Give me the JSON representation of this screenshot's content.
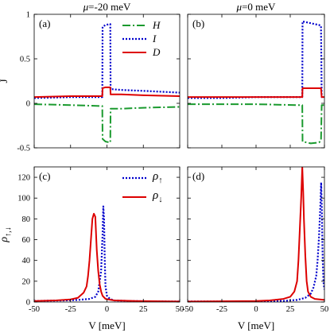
{
  "chart_data": [
    {
      "panel_label": "(a)",
      "type": "line",
      "title": "μ=-20 meV",
      "xlabel": "",
      "ylabel": "J",
      "xlim": [
        -50,
        50
      ],
      "ylim": [
        -0.5,
        1.0
      ],
      "xticks": [
        -50,
        -25,
        0,
        25,
        50
      ],
      "yticks": [
        -0.5,
        0,
        0.5,
        1
      ],
      "ytick_labels": [
        "-0.5",
        "0",
        "0.5",
        "1"
      ],
      "legend": {
        "placement": "top-right",
        "entries": [
          "H",
          "I",
          "D"
        ]
      },
      "series": [
        {
          "name": "H",
          "color": "#1a9a2e",
          "style": "dash-dot",
          "points": [
            [
              -50,
              -0.01
            ],
            [
              -25,
              -0.02
            ],
            [
              -5,
              -0.03
            ],
            [
              -3.2,
              -0.03
            ],
            [
              -3,
              -0.4
            ],
            [
              -1,
              -0.43
            ],
            [
              2,
              -0.44
            ],
            [
              2.3,
              -0.44
            ],
            [
              2.5,
              -0.06
            ],
            [
              10,
              -0.06
            ],
            [
              25,
              -0.05
            ],
            [
              50,
              -0.04
            ]
          ]
        },
        {
          "name": "I",
          "color": "#0000cc",
          "style": "dotted",
          "points": [
            [
              -50,
              0.06
            ],
            [
              -25,
              0.07
            ],
            [
              -5,
              0.07
            ],
            [
              -3.2,
              0.07
            ],
            [
              -3,
              0.86
            ],
            [
              -1,
              0.88
            ],
            [
              2,
              0.89
            ],
            [
              2.3,
              0.89
            ],
            [
              2.5,
              0.16
            ],
            [
              10,
              0.15
            ],
            [
              25,
              0.14
            ],
            [
              50,
              0.12
            ]
          ]
        },
        {
          "name": "D",
          "color": "#dd0000",
          "style": "solid",
          "points": [
            [
              -50,
              0.07
            ],
            [
              -25,
              0.08
            ],
            [
              -5,
              0.08
            ],
            [
              -3.2,
              0.08
            ],
            [
              -3,
              0.17
            ],
            [
              -1,
              0.18
            ],
            [
              2,
              0.18
            ],
            [
              2.3,
              0.18
            ],
            [
              2.5,
              0.1
            ],
            [
              10,
              0.1
            ],
            [
              25,
              0.09
            ],
            [
              50,
              0.08
            ]
          ]
        }
      ]
    },
    {
      "panel_label": "(b)",
      "type": "line",
      "title": "μ=0 meV",
      "xlim": [
        -50,
        50
      ],
      "ylim": [
        -0.5,
        1.0
      ],
      "xticks": [
        -50,
        -25,
        0,
        25,
        50
      ],
      "series": [
        {
          "name": "H",
          "color": "#1a9a2e",
          "style": "dash-dot",
          "points": [
            [
              -50,
              -0.01
            ],
            [
              -25,
              -0.01
            ],
            [
              0,
              -0.01
            ],
            [
              30,
              -0.02
            ],
            [
              33.8,
              -0.02
            ],
            [
              34,
              -0.43
            ],
            [
              40,
              -0.45
            ],
            [
              46,
              -0.44
            ],
            [
              47.5,
              -0.42
            ],
            [
              48,
              -0.02
            ],
            [
              50,
              -0.02
            ]
          ]
        },
        {
          "name": "I",
          "color": "#0000cc",
          "style": "dotted",
          "points": [
            [
              -50,
              0.06
            ],
            [
              -25,
              0.06
            ],
            [
              0,
              0.07
            ],
            [
              30,
              0.07
            ],
            [
              33.8,
              0.07
            ],
            [
              34,
              0.92
            ],
            [
              40,
              0.9
            ],
            [
              46,
              0.88
            ],
            [
              47.5,
              0.87
            ],
            [
              48,
              0.07
            ],
            [
              50,
              0.07
            ]
          ]
        },
        {
          "name": "D",
          "color": "#dd0000",
          "style": "solid",
          "points": [
            [
              -50,
              0.07
            ],
            [
              -25,
              0.07
            ],
            [
              0,
              0.07
            ],
            [
              30,
              0.07
            ],
            [
              33.8,
              0.07
            ],
            [
              34,
              0.17
            ],
            [
              40,
              0.17
            ],
            [
              46,
              0.17
            ],
            [
              47.5,
              0.17
            ],
            [
              48,
              0.07
            ],
            [
              50,
              0.07
            ]
          ]
        }
      ]
    },
    {
      "panel_label": "(c)",
      "type": "line",
      "xlabel": "V [meV]",
      "ylabel": "ρ↑,↓",
      "xlim": [
        -50,
        50
      ],
      "ylim": [
        0,
        130
      ],
      "xticks": [
        -50,
        -25,
        0,
        25,
        50
      ],
      "yticks": [
        0,
        20,
        40,
        60,
        80,
        100,
        120
      ],
      "legend": {
        "placement": "top-right",
        "entries": [
          "ρ↑",
          "ρ↓"
        ]
      },
      "series": [
        {
          "name": "ρ↑",
          "color": "#0000cc",
          "style": "dotted",
          "points": [
            [
              -50,
              1
            ],
            [
              -30,
              1.5
            ],
            [
              -20,
              2
            ],
            [
              -12,
              3
            ],
            [
              -8,
              5
            ],
            [
              -6,
              10
            ],
            [
              -4,
              30
            ],
            [
              -3,
              65
            ],
            [
              -2.5,
              92
            ],
            [
              -2,
              80
            ],
            [
              -1.5,
              40
            ],
            [
              -1,
              15
            ],
            [
              0,
              6
            ],
            [
              2,
              3
            ],
            [
              5,
              1.5
            ],
            [
              15,
              1
            ],
            [
              30,
              0.6
            ],
            [
              50,
              0.5
            ]
          ]
        },
        {
          "name": "ρ↓",
          "color": "#dd0000",
          "style": "solid",
          "points": [
            [
              -50,
              1
            ],
            [
              -35,
              1.5
            ],
            [
              -25,
              2.5
            ],
            [
              -20,
              4
            ],
            [
              -16,
              9
            ],
            [
              -14,
              15
            ],
            [
              -13,
              25
            ],
            [
              -12,
              40
            ],
            [
              -11,
              60
            ],
            [
              -10,
              80
            ],
            [
              -9,
              85
            ],
            [
              -8,
              82
            ],
            [
              -7,
              50
            ],
            [
              -6,
              30
            ],
            [
              -5,
              17
            ],
            [
              -4,
              10
            ],
            [
              -3,
              6
            ],
            [
              -1,
              3
            ],
            [
              5,
              1.5
            ],
            [
              20,
              1
            ],
            [
              50,
              0.5
            ]
          ]
        }
      ]
    },
    {
      "panel_label": "(d)",
      "type": "line",
      "xlabel": "V [meV]",
      "xlim": [
        -50,
        50
      ],
      "ylim": [
        0,
        130
      ],
      "xticks": [
        -50,
        -25,
        0,
        25,
        50
      ],
      "series": [
        {
          "name": "ρ↑",
          "color": "#0000cc",
          "style": "dotted",
          "points": [
            [
              -50,
              0.5
            ],
            [
              0,
              0.5
            ],
            [
              20,
              1
            ],
            [
              30,
              2
            ],
            [
              36,
              4
            ],
            [
              40,
              8
            ],
            [
              42,
              14
            ],
            [
              44,
              25
            ],
            [
              45,
              40
            ],
            [
              46,
              62
            ],
            [
              47,
              92
            ],
            [
              47.6,
              115
            ],
            [
              48.1,
              90
            ],
            [
              48.6,
              50
            ],
            [
              49,
              30
            ],
            [
              49.4,
              18
            ],
            [
              50,
              12
            ]
          ]
        },
        {
          "name": "ρ↓",
          "color": "#dd0000",
          "style": "solid",
          "points": [
            [
              -50,
              0.5
            ],
            [
              -20,
              0.8
            ],
            [
              0,
              1
            ],
            [
              10,
              1.5
            ],
            [
              20,
              3
            ],
            [
              25,
              5
            ],
            [
              28,
              10
            ],
            [
              30,
              20
            ],
            [
              31,
              40
            ],
            [
              32,
              70
            ],
            [
              33,
              100
            ],
            [
              33.8,
              130
            ],
            [
              34.5,
              105
            ],
            [
              35,
              80
            ],
            [
              36,
              45
            ],
            [
              37,
              20
            ],
            [
              38,
              10
            ],
            [
              40,
              5
            ],
            [
              43,
              3
            ],
            [
              50,
              2
            ]
          ]
        }
      ]
    }
  ]
}
